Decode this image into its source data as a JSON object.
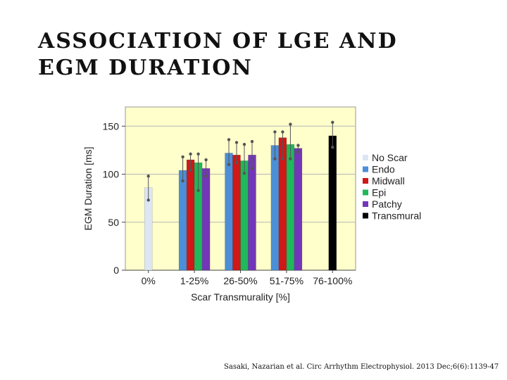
{
  "slide": {
    "title_line1": "ASSOCIATION OF LGE AND",
    "title_line2": "EGM DURATION",
    "citation": "Sasaki, Nazarian et al. Circ Arrhythm Electrophysiol. 2013 Dec;6(6):1139-47"
  },
  "chart_data": {
    "type": "bar",
    "title": "",
    "xlabel": "Scar Transmurality  [%]",
    "ylabel": "EGM Duration [ms]",
    "ylim": [
      0,
      170
    ],
    "yticks": [
      0,
      50,
      100,
      150
    ],
    "grid": "horizontal",
    "legend_position": "right",
    "categories": [
      "0%",
      "1-25%",
      "26-50%",
      "51-75%",
      "76-100%"
    ],
    "series": [
      {
        "name": "No Scar",
        "color": "#dce6f4",
        "values": [
          86,
          null,
          null,
          null,
          null
        ],
        "err_low": [
          73,
          null,
          null,
          null,
          null
        ],
        "err_high": [
          98,
          null,
          null,
          null,
          null
        ]
      },
      {
        "name": "Endo",
        "color": "#4a8fd8",
        "values": [
          null,
          104,
          122,
          130,
          null
        ],
        "err_low": [
          null,
          93,
          110,
          116,
          null
        ],
        "err_high": [
          null,
          118,
          136,
          144,
          null
        ]
      },
      {
        "name": "Midwall",
        "color": "#d01818",
        "values": [
          null,
          115,
          120,
          138,
          null
        ],
        "err_low": [
          null,
          104,
          112,
          116,
          null
        ],
        "err_high": [
          null,
          121,
          133,
          144,
          null
        ]
      },
      {
        "name": "Epi",
        "color": "#1fb85a",
        "values": [
          null,
          112,
          114,
          131,
          null
        ],
        "err_low": [
          null,
          83,
          101,
          116,
          null
        ],
        "err_high": [
          null,
          121,
          131,
          152,
          null
        ]
      },
      {
        "name": "Patchy",
        "color": "#7436b8",
        "values": [
          null,
          106,
          120,
          127,
          null
        ],
        "err_low": [
          null,
          98,
          106,
          123,
          null
        ],
        "err_high": [
          null,
          115,
          134,
          130,
          null
        ]
      },
      {
        "name": "Transmural",
        "color": "#000000",
        "values": [
          null,
          null,
          null,
          null,
          140
        ],
        "err_low": [
          null,
          null,
          null,
          null,
          128
        ],
        "err_high": [
          null,
          null,
          null,
          null,
          154
        ]
      }
    ]
  }
}
